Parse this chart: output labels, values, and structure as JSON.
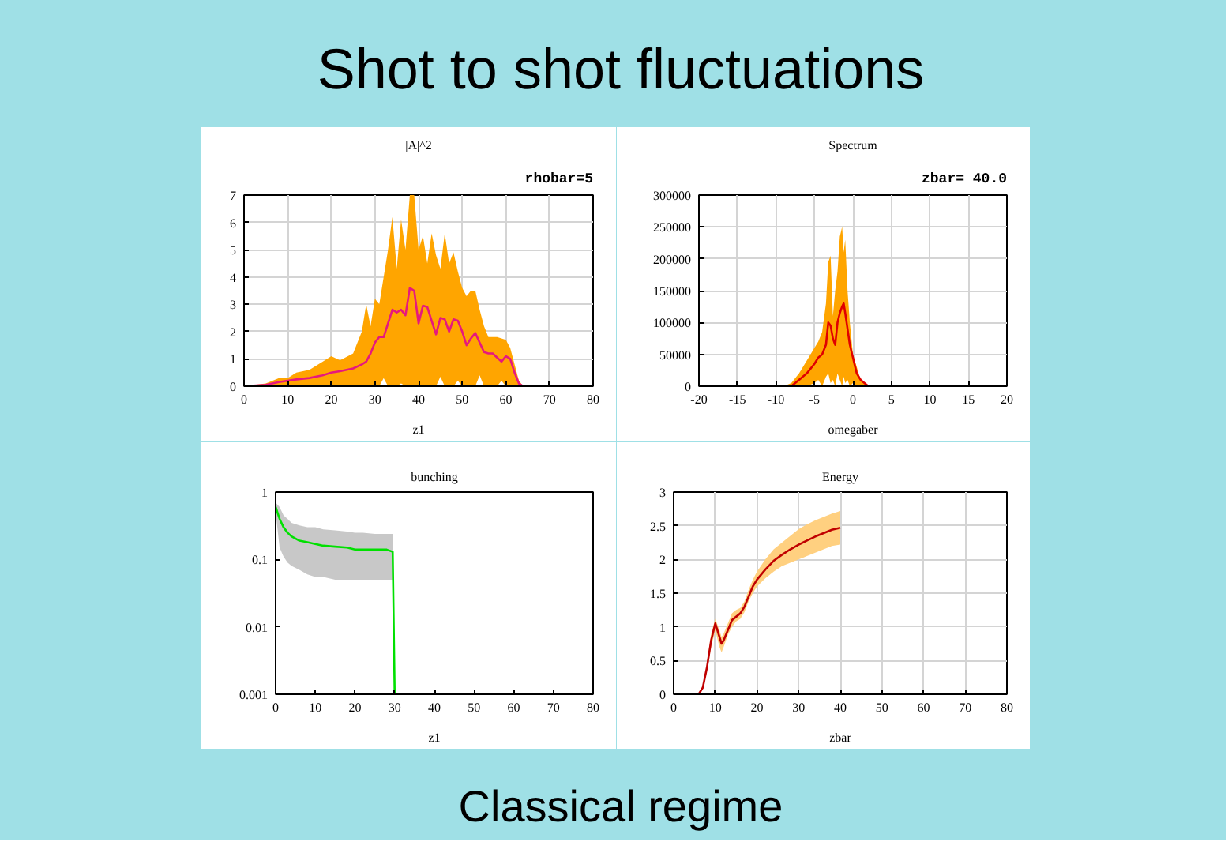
{
  "chart_data": [
    {
      "type": "other",
      "title": "Shot to shot fluctuations",
      "annotations": [
        "Classical regime"
      ]
    },
    {
      "type": "line",
      "title": "|A|^2",
      "xlabel": "z1",
      "annotations": [
        "rhobar=5"
      ],
      "xlim": [
        0,
        80
      ],
      "ylim": [
        0,
        7
      ],
      "xticks": [
        0,
        10,
        20,
        30,
        40,
        50,
        60,
        70,
        80
      ],
      "yticks": [
        0,
        1,
        2,
        3,
        4,
        5,
        6,
        7
      ],
      "grid": true,
      "series": [
        {
          "color": "#e6187e",
          "x": [
            0,
            5,
            8,
            10,
            12,
            15,
            18,
            20,
            22,
            25,
            27,
            28,
            29,
            30,
            31,
            32,
            33,
            34,
            35,
            36,
            37,
            38,
            39,
            40,
            41,
            42,
            43,
            44,
            45,
            46,
            47,
            48,
            49,
            50,
            51,
            52,
            53,
            54,
            55,
            56,
            57,
            58,
            59,
            60,
            61,
            62,
            63,
            64,
            65,
            72
          ],
          "values": [
            0,
            0.05,
            0.15,
            0.2,
            0.25,
            0.3,
            0.4,
            0.5,
            0.55,
            0.65,
            0.8,
            0.9,
            1.2,
            1.6,
            1.8,
            1.8,
            2.3,
            2.8,
            2.7,
            2.8,
            2.6,
            3.6,
            3.5,
            2.3,
            2.95,
            2.9,
            2.4,
            1.9,
            2.5,
            2.45,
            2.0,
            2.45,
            2.4,
            2.0,
            1.5,
            1.75,
            1.95,
            1.6,
            1.25,
            1.2,
            1.2,
            1.05,
            0.9,
            1.1,
            1.0,
            0.5,
            0.1,
            0,
            0,
            0
          ],
          "upper": [
            0,
            0.1,
            0.3,
            0.3,
            0.5,
            0.6,
            0.9,
            1.1,
            0.95,
            1.2,
            2.0,
            3.0,
            2.2,
            3.2,
            3.0,
            4.0,
            5.0,
            6.2,
            4.3,
            6.1,
            5.0,
            7.0,
            7.0,
            5.0,
            5.5,
            4.5,
            5.6,
            4.8,
            4.3,
            5.6,
            4.5,
            4.9,
            4.2,
            3.6,
            3.3,
            3.5,
            3.5,
            2.8,
            2.2,
            1.8,
            1.8,
            1.8,
            1.75,
            1.7,
            1.4,
            0.8,
            0.2,
            0,
            0,
            0
          ],
          "lower": [
            0,
            0,
            0,
            0,
            0,
            0,
            0,
            0,
            0,
            0,
            0,
            0,
            0,
            0,
            0,
            0.3,
            0,
            0,
            0,
            0.1,
            0,
            0,
            0,
            0,
            0,
            0,
            0,
            0,
            0.35,
            0,
            0,
            0,
            0.2,
            0,
            0,
            0,
            0,
            0.4,
            0,
            0,
            0,
            0,
            0.2,
            0,
            0,
            0,
            0,
            0,
            0,
            0
          ]
        }
      ]
    },
    {
      "type": "line",
      "title": "Spectrum",
      "xlabel": "omegaber",
      "annotations": [
        "zbar= 40.0"
      ],
      "xlim": [
        -20,
        20
      ],
      "ylim": [
        0,
        300000
      ],
      "xticks": [
        -20,
        -15,
        -10,
        -5,
        0,
        5,
        10,
        15,
        20
      ],
      "yticks": [
        0,
        50000,
        100000,
        150000,
        200000,
        250000,
        300000
      ],
      "grid": true,
      "series": [
        {
          "color": "#e00000",
          "x": [
            -20,
            -10,
            -9,
            -8,
            -7,
            -6,
            -5,
            -4.5,
            -4,
            -3.5,
            -3.2,
            -2.9,
            -2.6,
            -2.3,
            -2,
            -1.7,
            -1.4,
            -1.2,
            -1,
            -0.7,
            -0.4,
            0,
            0.5,
            1,
            2,
            3,
            20
          ],
          "values": [
            0,
            0,
            0,
            0,
            10000,
            20000,
            35000,
            45000,
            50000,
            65000,
            100000,
            95000,
            75000,
            65000,
            100000,
            115000,
            125000,
            130000,
            115000,
            90000,
            65000,
            45000,
            20000,
            10000,
            0,
            0,
            0
          ],
          "upper": [
            0,
            0,
            0,
            5000,
            20000,
            40000,
            60000,
            70000,
            85000,
            130000,
            195000,
            205000,
            110000,
            150000,
            180000,
            235000,
            250000,
            210000,
            230000,
            150000,
            100000,
            50000,
            30000,
            10000,
            0,
            0,
            0
          ],
          "lower": [
            0,
            0,
            0,
            0,
            0,
            0,
            5000,
            10000,
            0,
            15000,
            20000,
            5000,
            10000,
            0,
            20000,
            10000,
            0,
            15000,
            5000,
            10000,
            0,
            5000,
            0,
            0,
            0,
            0,
            0
          ]
        }
      ]
    },
    {
      "type": "line",
      "title": "bunching",
      "xlabel": "z1",
      "log": "y",
      "xlim": [
        0,
        80
      ],
      "ylim": [
        0.001,
        1
      ],
      "xticks": [
        0,
        10,
        20,
        30,
        40,
        50,
        60,
        70,
        80
      ],
      "yticks": [
        0.001,
        0.01,
        0.1,
        1
      ],
      "series": [
        {
          "color": "#00e000",
          "x": [
            0,
            1,
            2,
            3,
            4,
            6,
            8,
            10,
            12,
            15,
            18,
            20,
            22,
            25,
            28,
            29.5,
            30
          ],
          "values": [
            0.6,
            0.4,
            0.3,
            0.25,
            0.22,
            0.19,
            0.18,
            0.17,
            0.16,
            0.155,
            0.15,
            0.14,
            0.14,
            0.14,
            0.14,
            0.13,
            0.001
          ],
          "upper": [
            0.7,
            0.6,
            0.45,
            0.4,
            0.35,
            0.32,
            0.3,
            0.3,
            0.28,
            0.27,
            0.26,
            0.25,
            0.25,
            0.24,
            0.24,
            0.24,
            null
          ],
          "lower": [
            0.5,
            0.15,
            0.11,
            0.09,
            0.08,
            0.07,
            0.06,
            0.055,
            0.055,
            0.05,
            0.05,
            0.05,
            0.05,
            0.05,
            0.05,
            0.05,
            null
          ]
        }
      ]
    },
    {
      "type": "line",
      "title": "Energy",
      "xlabel": "zbar",
      "xlim": [
        0,
        80
      ],
      "ylim": [
        0,
        3
      ],
      "xticks": [
        0,
        10,
        20,
        30,
        40,
        50,
        60,
        70,
        80
      ],
      "yticks": [
        0,
        0.5,
        1,
        1.5,
        2,
        2.5,
        3
      ],
      "grid": true,
      "series": [
        {
          "color": "#c00000",
          "x": [
            0,
            6,
            7,
            8,
            9,
            10,
            11,
            11.5,
            12,
            13,
            14,
            15,
            16,
            17,
            18,
            19,
            20,
            22,
            24,
            26,
            28,
            30,
            32,
            34,
            36,
            38,
            40
          ],
          "values": [
            0,
            0,
            0.1,
            0.4,
            0.8,
            1.05,
            0.85,
            0.75,
            0.8,
            0.95,
            1.1,
            1.15,
            1.2,
            1.3,
            1.45,
            1.6,
            1.7,
            1.85,
            1.98,
            2.07,
            2.15,
            2.22,
            2.28,
            2.34,
            2.39,
            2.44,
            2.47
          ],
          "upper": [
            0,
            0,
            0.1,
            0.45,
            0.9,
            1.12,
            0.95,
            0.85,
            0.9,
            1.05,
            1.2,
            1.25,
            1.28,
            1.38,
            1.55,
            1.7,
            1.82,
            2.0,
            2.15,
            2.25,
            2.35,
            2.45,
            2.52,
            2.58,
            2.63,
            2.68,
            2.72
          ],
          "lower": [
            0,
            0,
            0.1,
            0.35,
            0.7,
            0.95,
            0.7,
            0.62,
            0.7,
            0.88,
            1.0,
            1.08,
            1.12,
            1.22,
            1.38,
            1.5,
            1.6,
            1.72,
            1.82,
            1.9,
            1.95,
            2.0,
            2.05,
            2.1,
            2.15,
            2.2,
            2.22
          ]
        }
      ]
    }
  ]
}
